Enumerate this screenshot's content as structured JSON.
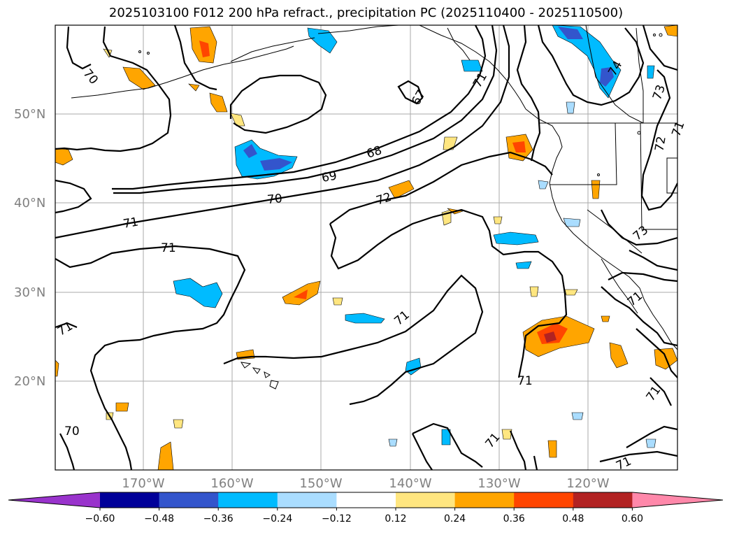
{
  "title": "2025103100 F012 200 hPa refract., precipitation PC (2025110400 - 2025110500)",
  "lat_labels": [
    "50°N",
    "40°N",
    "30°N",
    "20°N"
  ],
  "lon_labels": [
    "170°W",
    "160°W",
    "150°W",
    "140°W",
    "130°W",
    "120°W"
  ],
  "contour_labels": [
    "70",
    "67",
    "68",
    "69",
    "70",
    "72",
    "71",
    "71",
    "71",
    "71",
    "71",
    "71",
    "71",
    "73",
    "72",
    "73",
    "71",
    "70",
    "71",
    "71",
    "71",
    "74"
  ],
  "colorbar": {
    "ticks": [
      "−0.60",
      "−0.48",
      "−0.36",
      "−0.24",
      "−0.12",
      "0.12",
      "0.24",
      "0.36",
      "0.48",
      "0.60"
    ],
    "colors": [
      "#9933cc",
      "#000099",
      "#3355cc",
      "#00bbff",
      "#aaddff",
      "#ffffff",
      "#ffe680",
      "#ffa500",
      "#ff4500",
      "#b22222",
      "#ff88aa"
    ]
  },
  "colors": {
    "light_blue": "#aaddff",
    "blue": "#00bbff",
    "mid_blue": "#3355cc",
    "dark_blue": "#000099",
    "yellow": "#ffe680",
    "orange": "#ffa500",
    "red": "#ff4500",
    "dark_red": "#b22222",
    "grid": "#aaaaaa"
  }
}
